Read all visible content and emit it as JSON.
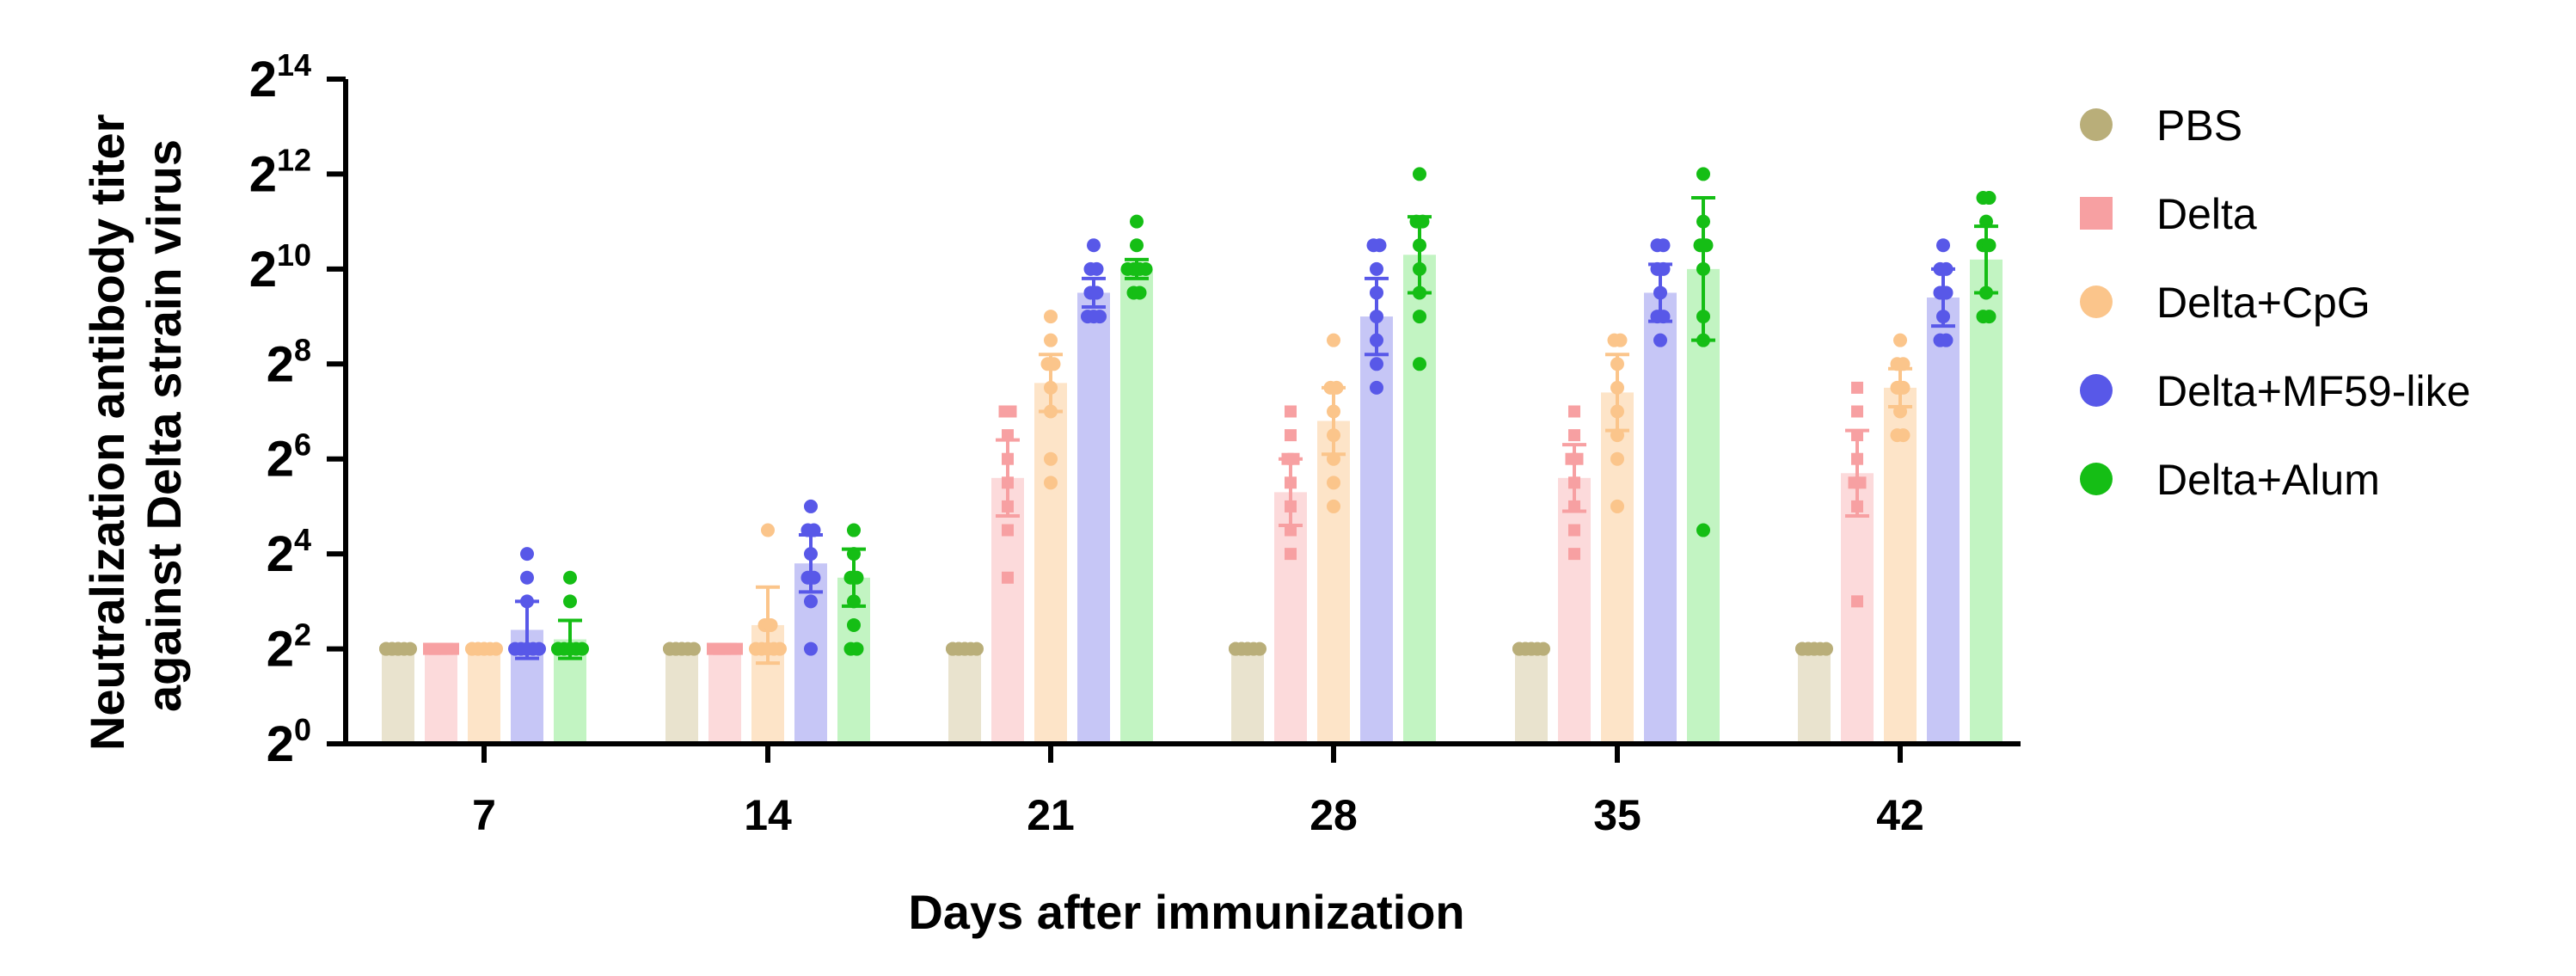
{
  "chart_data": {
    "type": "bar",
    "title": "",
    "xlabel": "Days after immunization",
    "ylabel_lines": [
      "Neutralization antibody titer",
      "against Delta strain virus"
    ],
    "y_scale": "log2",
    "ylim_exponent": [
      0,
      14
    ],
    "y_tick_base": "2",
    "y_tick_exponents": [
      "0",
      "2",
      "4",
      "6",
      "8",
      "10",
      "12",
      "14"
    ],
    "categories": [
      "7",
      "14",
      "21",
      "28",
      "35",
      "42"
    ],
    "legend_position": "right",
    "series": [
      {
        "name": "PBS",
        "marker": "circle",
        "color": "#B9AE79",
        "bar_color": "#E9E3CE",
        "means": [
          2,
          2,
          2,
          2,
          2,
          2
        ],
        "sd": [
          0,
          0,
          0,
          0,
          0,
          0
        ],
        "points": [
          [
            2,
            2,
            2,
            2,
            2,
            2,
            2,
            2
          ],
          [
            2,
            2,
            2,
            2,
            2,
            2,
            2,
            2
          ],
          [
            2,
            2,
            2,
            2,
            2,
            2,
            2,
            2
          ],
          [
            2,
            2,
            2,
            2,
            2,
            2,
            2,
            2
          ],
          [
            2,
            2,
            2,
            2,
            2,
            2,
            2,
            2
          ],
          [
            2,
            2,
            2,
            2,
            2,
            2,
            2,
            2
          ]
        ]
      },
      {
        "name": "Delta",
        "marker": "square",
        "color": "#F7A0A2",
        "bar_color": "#FCDADB",
        "means": [
          2,
          2,
          5.6,
          5.3,
          5.6,
          5.7
        ],
        "sd": [
          0,
          0,
          0.8,
          0.7,
          0.7,
          0.9
        ],
        "points": [
          [
            2,
            2,
            2,
            2,
            2,
            2,
            2,
            2
          ],
          [
            2,
            2,
            2,
            2,
            2,
            2,
            2,
            2
          ],
          [
            7,
            7,
            6.5,
            6,
            5.5,
            5,
            4.5,
            3.5
          ],
          [
            7,
            6.5,
            6,
            6,
            5.5,
            5,
            4.5,
            4
          ],
          [
            7,
            6.5,
            6,
            6,
            5.5,
            5,
            4.5,
            4
          ],
          [
            7.5,
            7,
            6.5,
            6,
            5.5,
            5.5,
            5,
            3
          ]
        ]
      },
      {
        "name": "Delta+CpG",
        "marker": "circle",
        "color": "#FBC58B",
        "bar_color": "#FDE4C8",
        "means": [
          2,
          2.5,
          7.6,
          6.8,
          7.4,
          7.5
        ],
        "sd": [
          0,
          0.8,
          0.6,
          0.7,
          0.8,
          0.4
        ],
        "points": [
          [
            2,
            2,
            2,
            2,
            2,
            2,
            2,
            2
          ],
          [
            4.5,
            2.5,
            2.5,
            2,
            2,
            2,
            2,
            2
          ],
          [
            9,
            8.5,
            8,
            8,
            7.5,
            7,
            6,
            5.5
          ],
          [
            8.5,
            7.5,
            7.5,
            7,
            6.5,
            6,
            5.5,
            5
          ],
          [
            8.5,
            8.5,
            8,
            7.5,
            7,
            6.5,
            6,
            5
          ],
          [
            8.5,
            8,
            8,
            7.5,
            7.5,
            7,
            6.5,
            6.5
          ]
        ]
      },
      {
        "name": "Delta+MF59-like",
        "marker": "circle",
        "color": "#5858E8",
        "bar_color": "#C6C6F6",
        "means": [
          2.4,
          3.8,
          9.5,
          9,
          9.5,
          9.4
        ],
        "sd": [
          0.6,
          0.6,
          0.3,
          0.8,
          0.6,
          0.6
        ],
        "points": [
          [
            4,
            3.5,
            3,
            2,
            2,
            2,
            2,
            2
          ],
          [
            5,
            4.5,
            4.5,
            4,
            3.5,
            3.5,
            3,
            2
          ],
          [
            10.5,
            10,
            10,
            9.5,
            9.5,
            9,
            9,
            9
          ],
          [
            10.5,
            10.5,
            10,
            9.5,
            9,
            8.5,
            8,
            7.5
          ],
          [
            10.5,
            10.5,
            10,
            10,
            9.5,
            9,
            9,
            8.5
          ],
          [
            10.5,
            10,
            10,
            9.5,
            9.5,
            9,
            8.5,
            8.5
          ]
        ]
      },
      {
        "name": "Delta+Alum",
        "marker": "circle",
        "color": "#15BE15",
        "bar_color": "#C2F4C2",
        "means": [
          2.2,
          3.5,
          10,
          10.3,
          10,
          10.2
        ],
        "sd": [
          0.4,
          0.6,
          0.2,
          0.8,
          1.5,
          0.7
        ],
        "points": [
          [
            3.5,
            3,
            2,
            2,
            2,
            2,
            2,
            2
          ],
          [
            4.5,
            4,
            3.5,
            3.5,
            3,
            2.5,
            2,
            2
          ],
          [
            11,
            10.5,
            10,
            10,
            10,
            9.5,
            9.5,
            10
          ],
          [
            12,
            11,
            11,
            10.5,
            10,
            9.5,
            9,
            8
          ],
          [
            12,
            11,
            10.5,
            10.5,
            10,
            9,
            8.5,
            4.5
          ],
          [
            11.5,
            11.5,
            11,
            10.5,
            10.5,
            9.5,
            9,
            9
          ]
        ]
      }
    ]
  }
}
